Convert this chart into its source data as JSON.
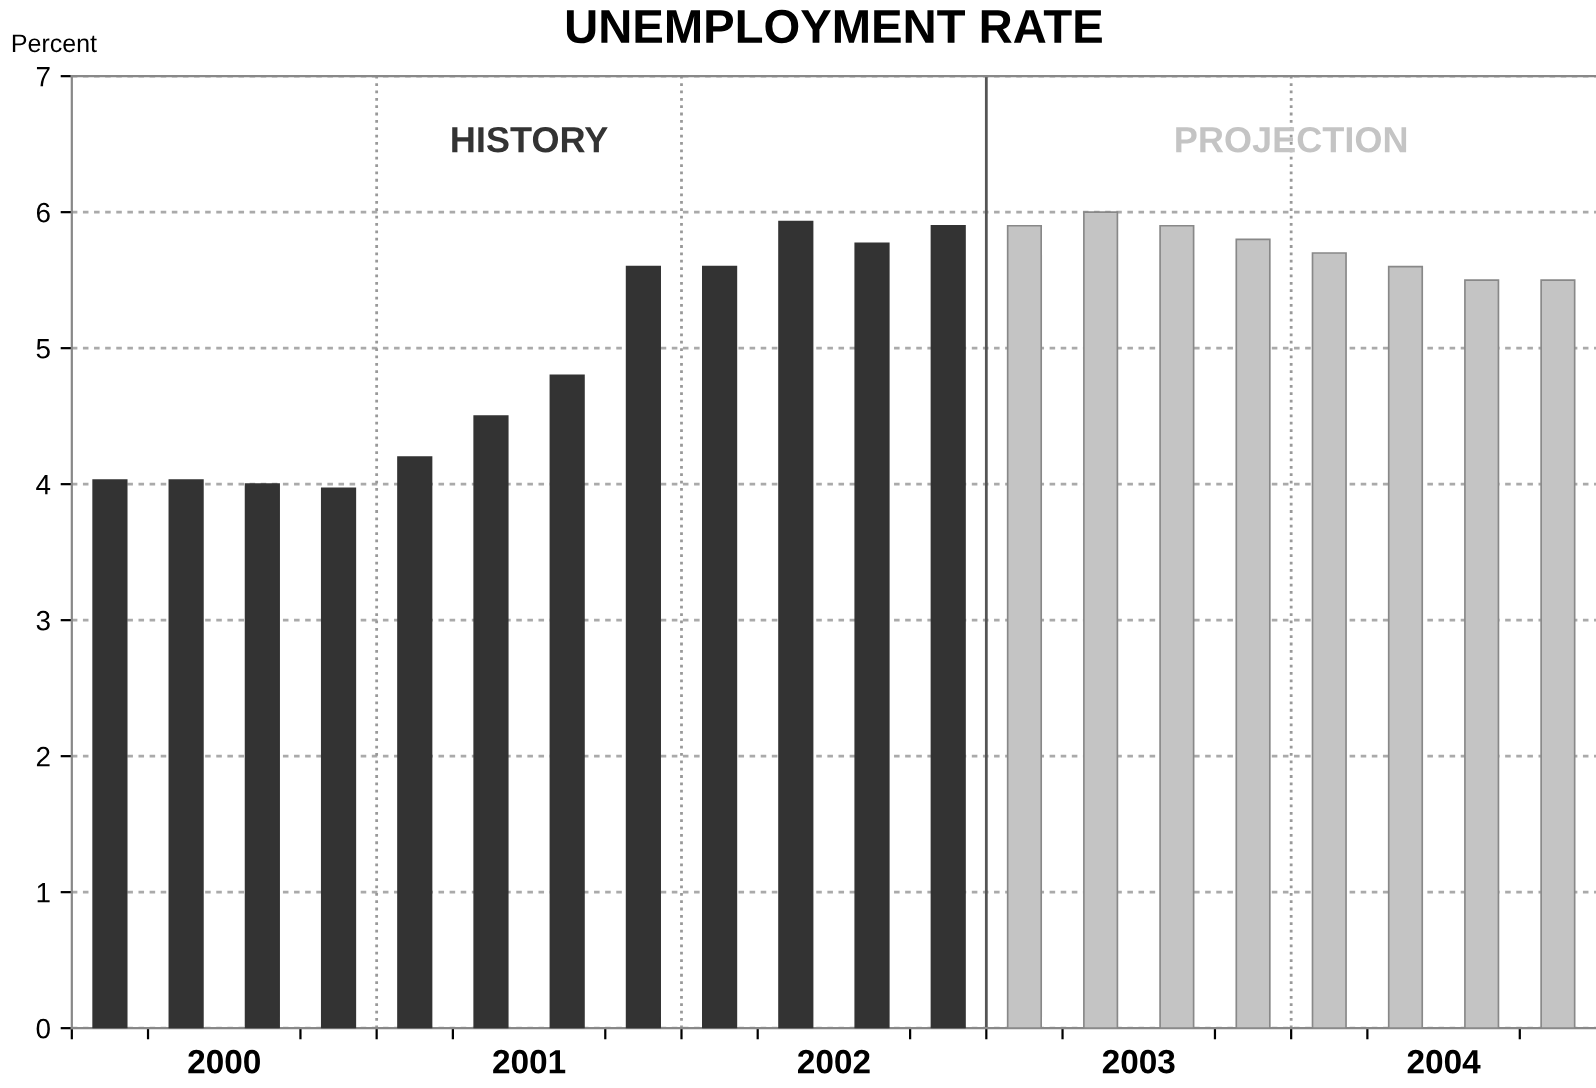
{
  "chart_data": {
    "type": "bar",
    "title": "UNEMPLOYMENT RATE",
    "ylabel": "Percent",
    "series": [
      {
        "name": "HISTORY",
        "color": "#333333",
        "x": [
          2000.125,
          2000.375,
          2000.625,
          2000.875,
          2001.125,
          2001.375,
          2001.625,
          2001.875,
          2002.125,
          2002.375,
          2002.625,
          2002.875
        ],
        "values": [
          4.03,
          4.03,
          4.0,
          3.97,
          4.2,
          4.5,
          4.8,
          5.6,
          5.6,
          5.93,
          5.77,
          5.9
        ]
      },
      {
        "name": "PROJECTION",
        "color": "#c4c4c4",
        "x": [
          2003.125,
          2003.375,
          2003.625,
          2003.875,
          2004.125,
          2004.375,
          2004.625,
          2004.875
        ],
        "values": [
          5.9,
          6.0,
          5.9,
          5.8,
          5.7,
          5.6,
          5.5,
          5.5
        ]
      }
    ],
    "xlim": [
      2000,
      2005
    ],
    "xticks": [
      {
        "value": 2000,
        "label": null
      },
      {
        "value": 2000.25,
        "label": null
      },
      {
        "value": 2000.5,
        "label": "2000"
      },
      {
        "value": 2000.75,
        "label": null
      },
      {
        "value": 2001,
        "label": null
      },
      {
        "value": 2001.25,
        "label": null
      },
      {
        "value": 2001.5,
        "label": "2001"
      },
      {
        "value": 2001.75,
        "label": null
      },
      {
        "value": 2002,
        "label": null
      },
      {
        "value": 2002.25,
        "label": null
      },
      {
        "value": 2002.5,
        "label": "2002"
      },
      {
        "value": 2002.75,
        "label": null
      },
      {
        "value": 2003,
        "label": null
      },
      {
        "value": 2003.25,
        "label": null
      },
      {
        "value": 2003.5,
        "label": "2003"
      },
      {
        "value": 2003.75,
        "label": null
      },
      {
        "value": 2004,
        "label": null
      },
      {
        "value": 2004.25,
        "label": null
      },
      {
        "value": 2004.5,
        "label": "2004"
      },
      {
        "value": 2004.75,
        "label": null
      }
    ],
    "ylim": [
      0,
      7
    ],
    "yticks": [
      0,
      1,
      2,
      3,
      4,
      5,
      6,
      7
    ],
    "grid": "y",
    "ref_lines": [
      {
        "axis": "x",
        "value": 2001,
        "line_style": "dotted",
        "color": "#999999"
      },
      {
        "axis": "x",
        "value": 2002,
        "line_style": "dotted",
        "color": "#999999"
      },
      {
        "axis": "x",
        "value": 2003,
        "line_style": "solid",
        "color": "#555555"
      },
      {
        "axis": "x",
        "value": 2004,
        "line_style": "dotted",
        "color": "#999999"
      }
    ],
    "legend": false
  }
}
